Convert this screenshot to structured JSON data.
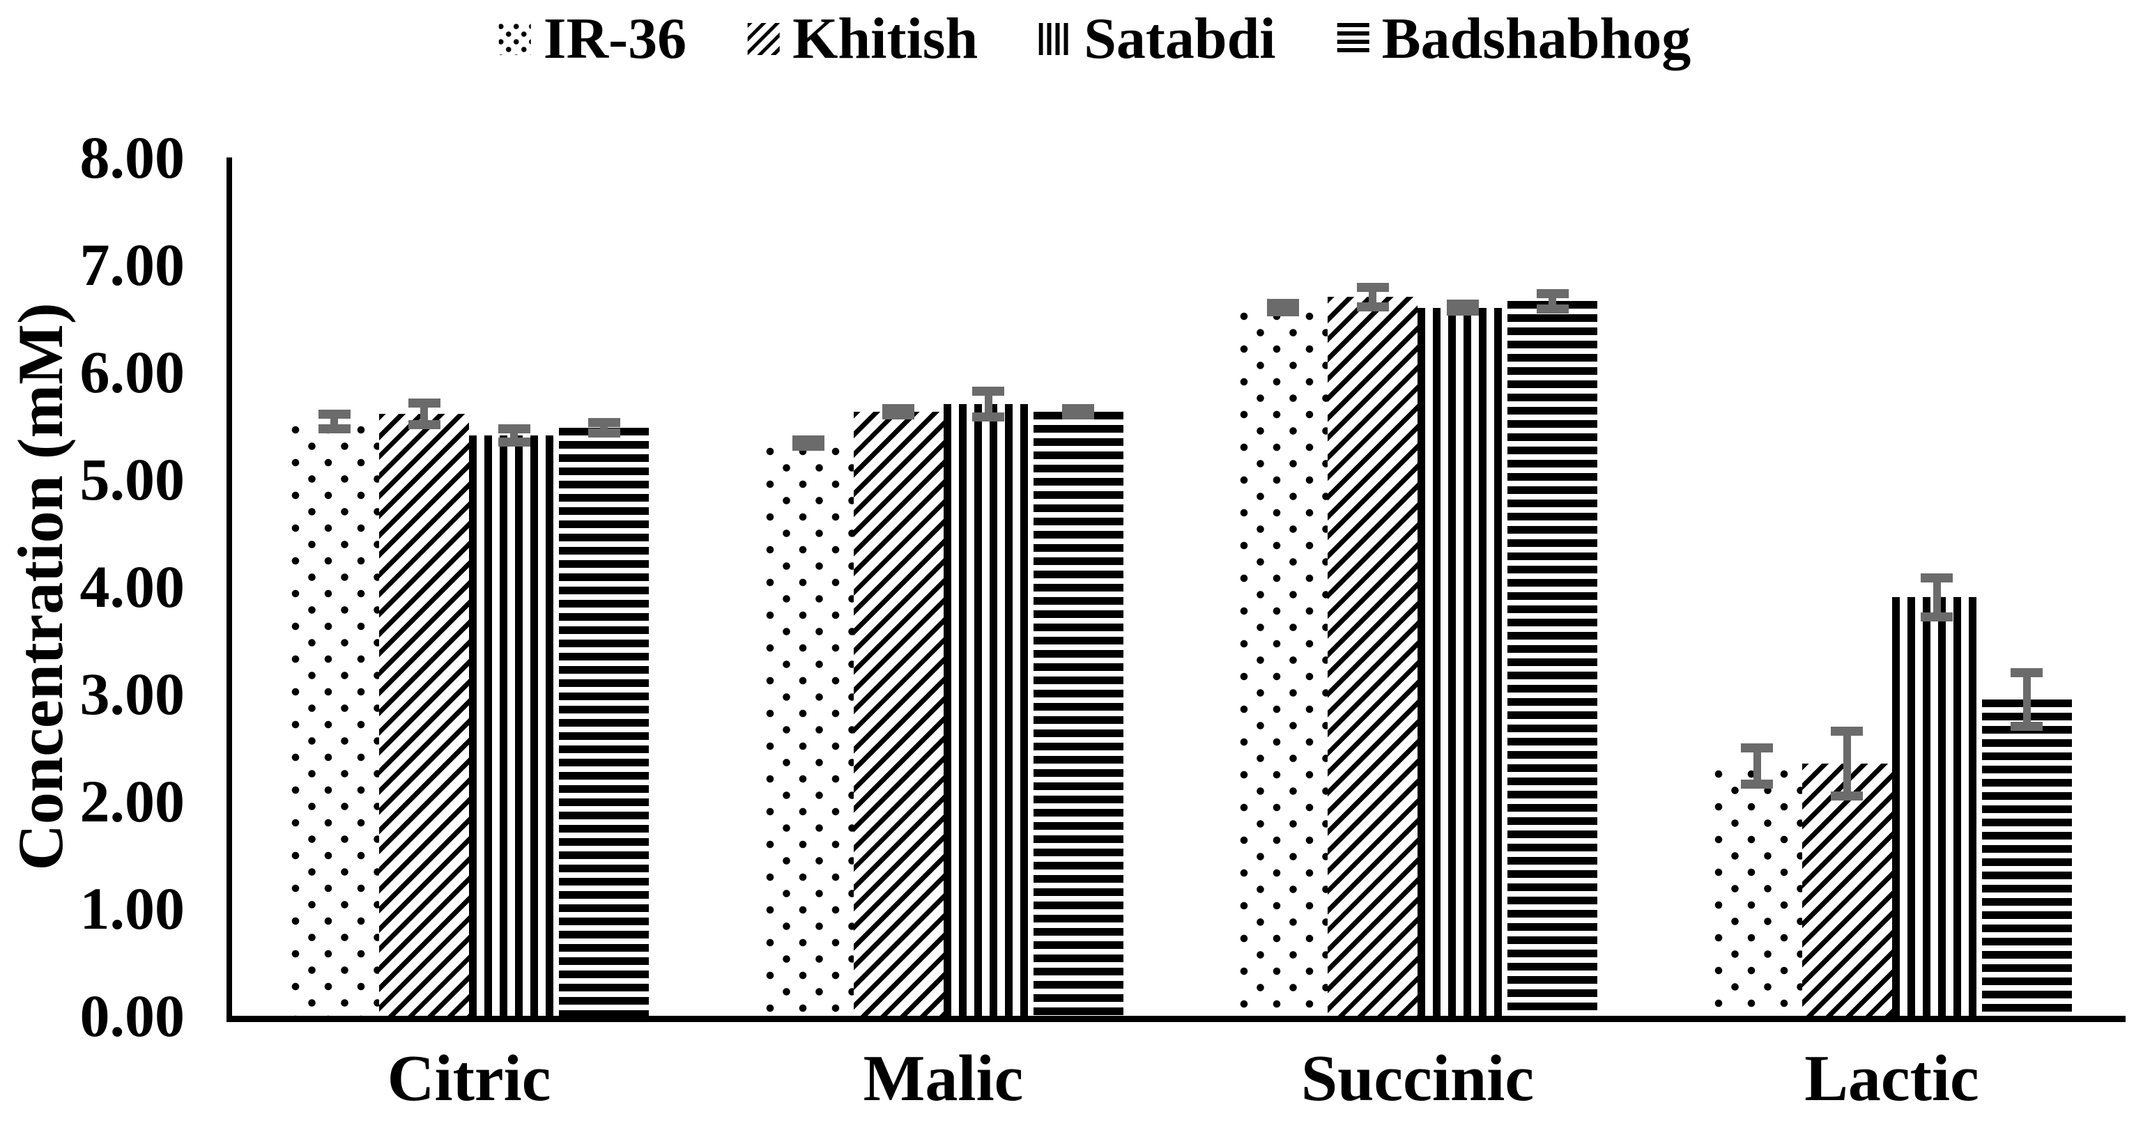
{
  "chart_data": {
    "type": "bar",
    "title": "",
    "categories": [
      "Citric",
      "Malic",
      "Succinic",
      "Lactic"
    ],
    "series": [
      {
        "name": "IR-36",
        "pattern": "dots",
        "values": [
          5.54,
          5.34,
          6.6,
          2.33
        ],
        "errors": [
          0.07,
          0.03,
          0.04,
          0.17
        ]
      },
      {
        "name": "Khitish",
        "pattern": "diagonal-stripes",
        "values": [
          5.61,
          5.63,
          6.7,
          2.35
        ],
        "errors": [
          0.1,
          0.03,
          0.09,
          0.3
        ]
      },
      {
        "name": "Satabdi",
        "pattern": "vertical-stripes",
        "values": [
          5.41,
          5.7,
          6.6,
          3.9
        ],
        "errors": [
          0.06,
          0.12,
          0.03,
          0.18
        ]
      },
      {
        "name": "Badshabhog",
        "pattern": "horizontal-stripes",
        "values": [
          5.48,
          5.63,
          6.66,
          2.95
        ],
        "errors": [
          0.05,
          0.03,
          0.07,
          0.25
        ]
      }
    ],
    "xlabel": "",
    "ylabel": "Concentration (mM)",
    "ylim": [
      0,
      8
    ],
    "ytick_step": 1.0,
    "ytick_labels": [
      "8.00",
      "7.00",
      "6.00",
      "5.00",
      "4.00",
      "3.00",
      "2.00",
      "1.00",
      "0.00"
    ],
    "grid": false,
    "legend_position": "top-center",
    "bar_fill_color": "#000000",
    "bar_background_color": "#ffffff",
    "error_bar_color": "#6b6b6b",
    "axis_color": "#000000",
    "text_color": "#000000"
  }
}
